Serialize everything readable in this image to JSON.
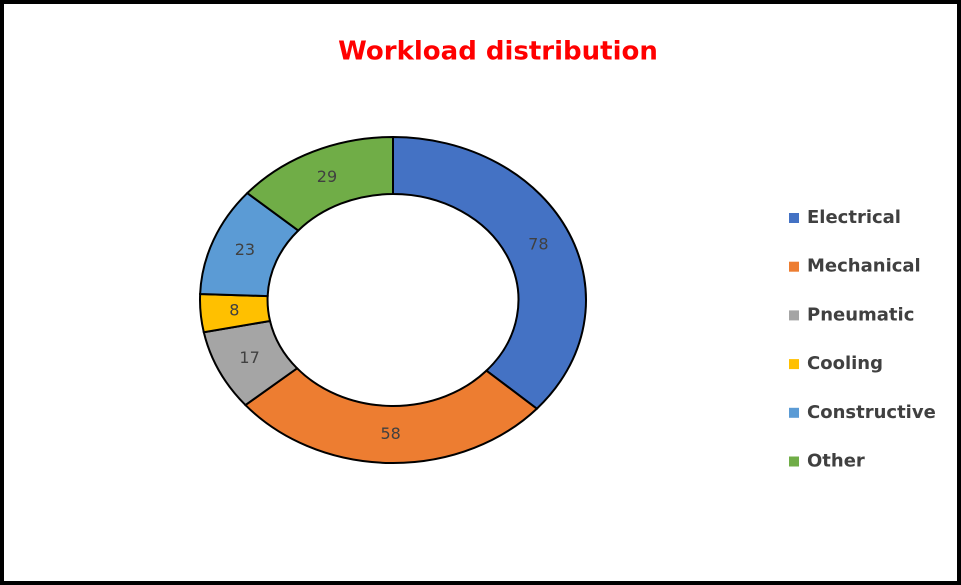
{
  "chart_data": {
    "type": "donut",
    "title": "Workload distribution",
    "categories": [
      "Electrical",
      "Mechanical",
      "Pneumatic",
      "Cooling",
      "Constructive",
      "Other"
    ],
    "values": [
      78,
      58,
      17,
      8,
      23,
      29
    ],
    "colors": [
      "#4472c4",
      "#ed7d31",
      "#a5a5a5",
      "#ffc000",
      "#5b9bd5",
      "#70ad47"
    ],
    "legend": "right"
  }
}
